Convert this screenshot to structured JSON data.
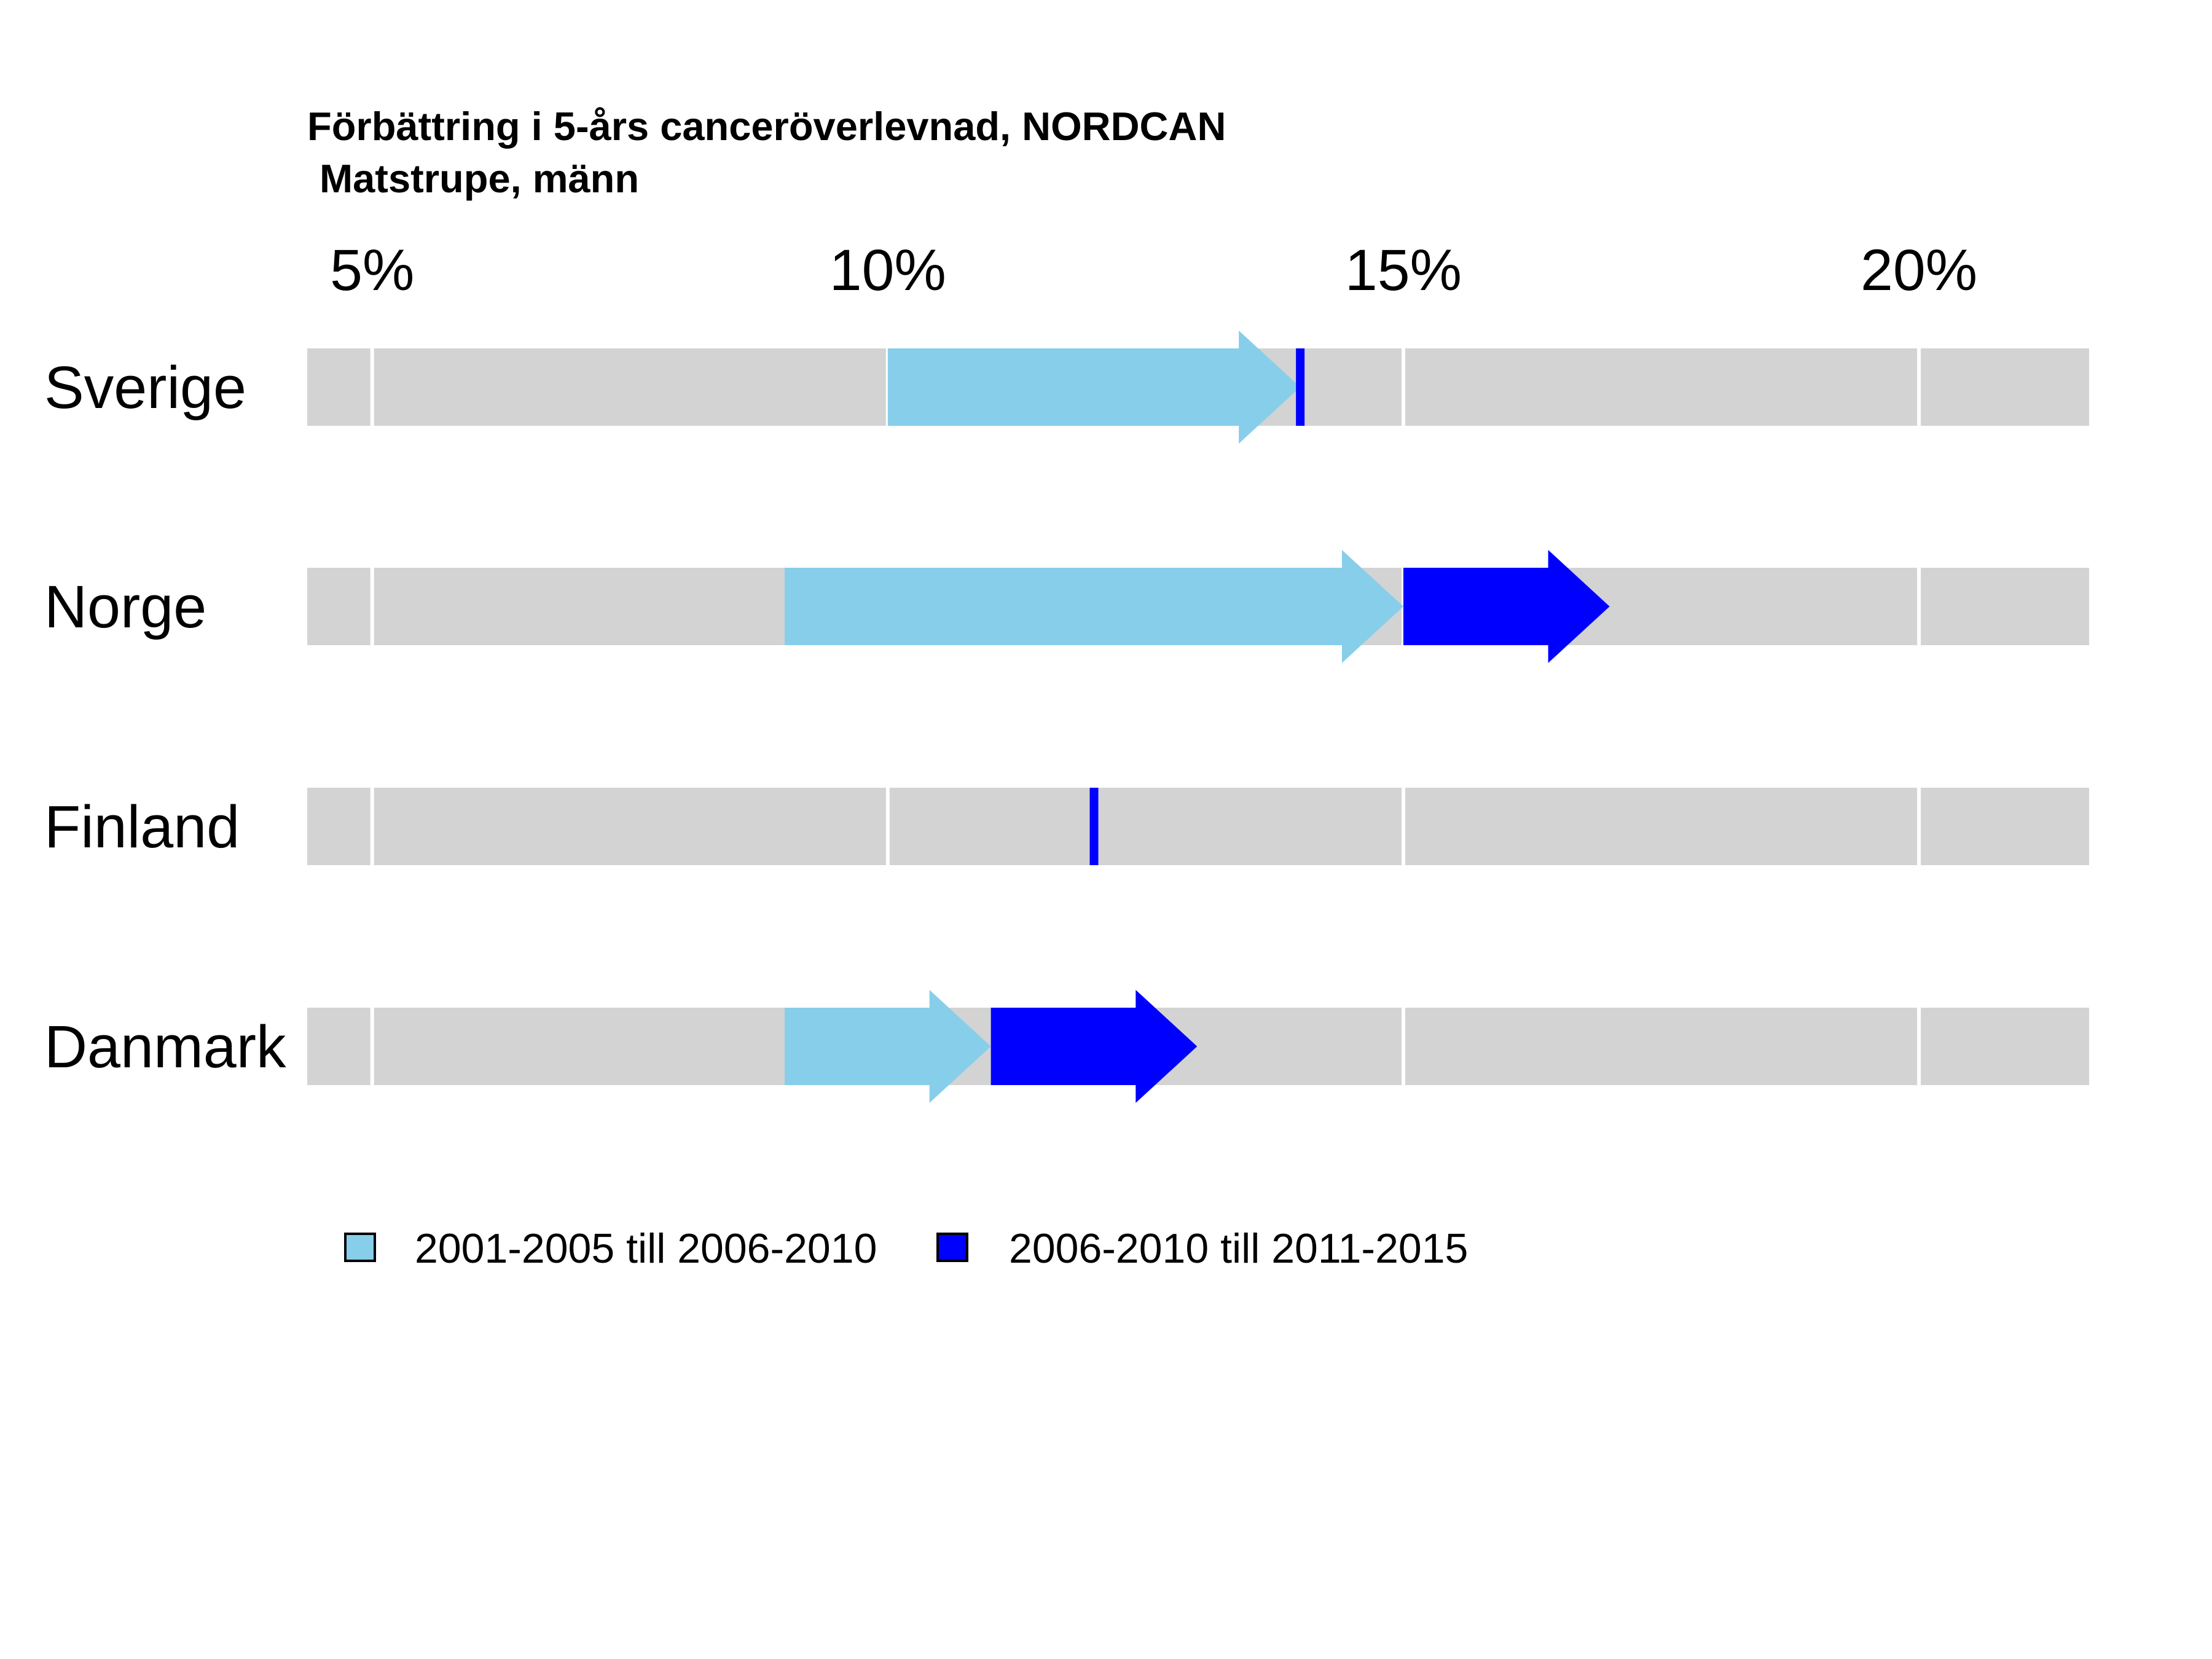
{
  "chart_data": {
    "type": "arrow",
    "title": "Förbättring i 5-års canceröverlevnad, NORDCAN",
    "subtitle": "Matstrupe, männ",
    "xlim": [
      4.37,
      21.65
    ],
    "ticks": [
      5,
      10,
      15,
      20
    ],
    "tick_labels": [
      "5%",
      "10%",
      "15%",
      "20%"
    ],
    "categories": [
      "Sverige",
      "Norge",
      "Finland",
      "Danmark"
    ],
    "series": [
      {
        "name": "2001-2005 till 2006-2010",
        "color": "#87CEEB",
        "values": [
          {
            "from": 10.0,
            "to": 14.0
          },
          {
            "from": 9.0,
            "to": 15.0
          },
          {
            "from": 12.0,
            "to": 12.0
          },
          {
            "from": 9.0,
            "to": 11.0
          }
        ]
      },
      {
        "name": "2006-2010 till 2011-2015",
        "color": "#0000FF",
        "values": [
          {
            "from": 14.0,
            "to": 14.0
          },
          {
            "from": 15.0,
            "to": 17.0
          },
          {
            "from": 12.0,
            "to": 12.0
          },
          {
            "from": 11.0,
            "to": 13.0
          }
        ]
      }
    ],
    "colors": {
      "panel": "#D3D3D3",
      "grid": "#FFFFFF"
    },
    "legend": "bottom",
    "grid": true
  }
}
